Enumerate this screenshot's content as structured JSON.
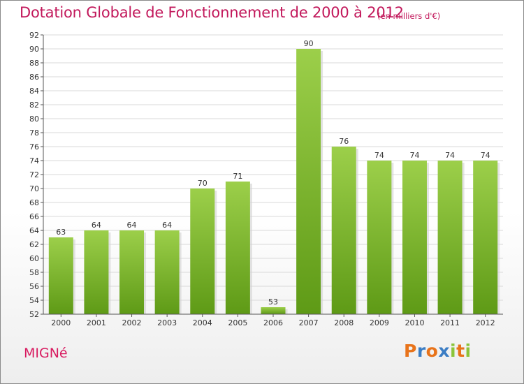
{
  "title": "Dotation Globale de Fonctionnement de 2000 à 2012",
  "subtitle": "(en milliers d'€)",
  "commune": "MIGNé",
  "logo": {
    "text": "Proxiti",
    "letters": [
      "P",
      "r",
      "o",
      "x",
      "i",
      "t",
      "i"
    ],
    "colors": [
      "#e8731a",
      "#3b7dc4",
      "#e8731a",
      "#3b7dc4",
      "#8bc43a",
      "#e8731a",
      "#8bc43a"
    ]
  },
  "colors": {
    "title": "#c2185b",
    "bar_light": "#9ccf4a",
    "bar_dark": "#5e9a16",
    "grid": "#d9d9d9"
  },
  "chart_data": {
    "type": "bar",
    "categories": [
      "2000",
      "2001",
      "2002",
      "2003",
      "2004",
      "2005",
      "2006",
      "2007",
      "2008",
      "2009",
      "2010",
      "2011",
      "2012"
    ],
    "values": [
      63,
      64,
      64,
      64,
      70,
      71,
      53,
      90,
      76,
      74,
      74,
      74,
      74
    ],
    "ylim": [
      52,
      92
    ],
    "yticks": [
      52,
      54,
      56,
      58,
      60,
      62,
      64,
      66,
      68,
      70,
      72,
      74,
      76,
      78,
      80,
      82,
      84,
      86,
      88,
      90,
      92
    ],
    "grid": true,
    "legend": "none"
  }
}
